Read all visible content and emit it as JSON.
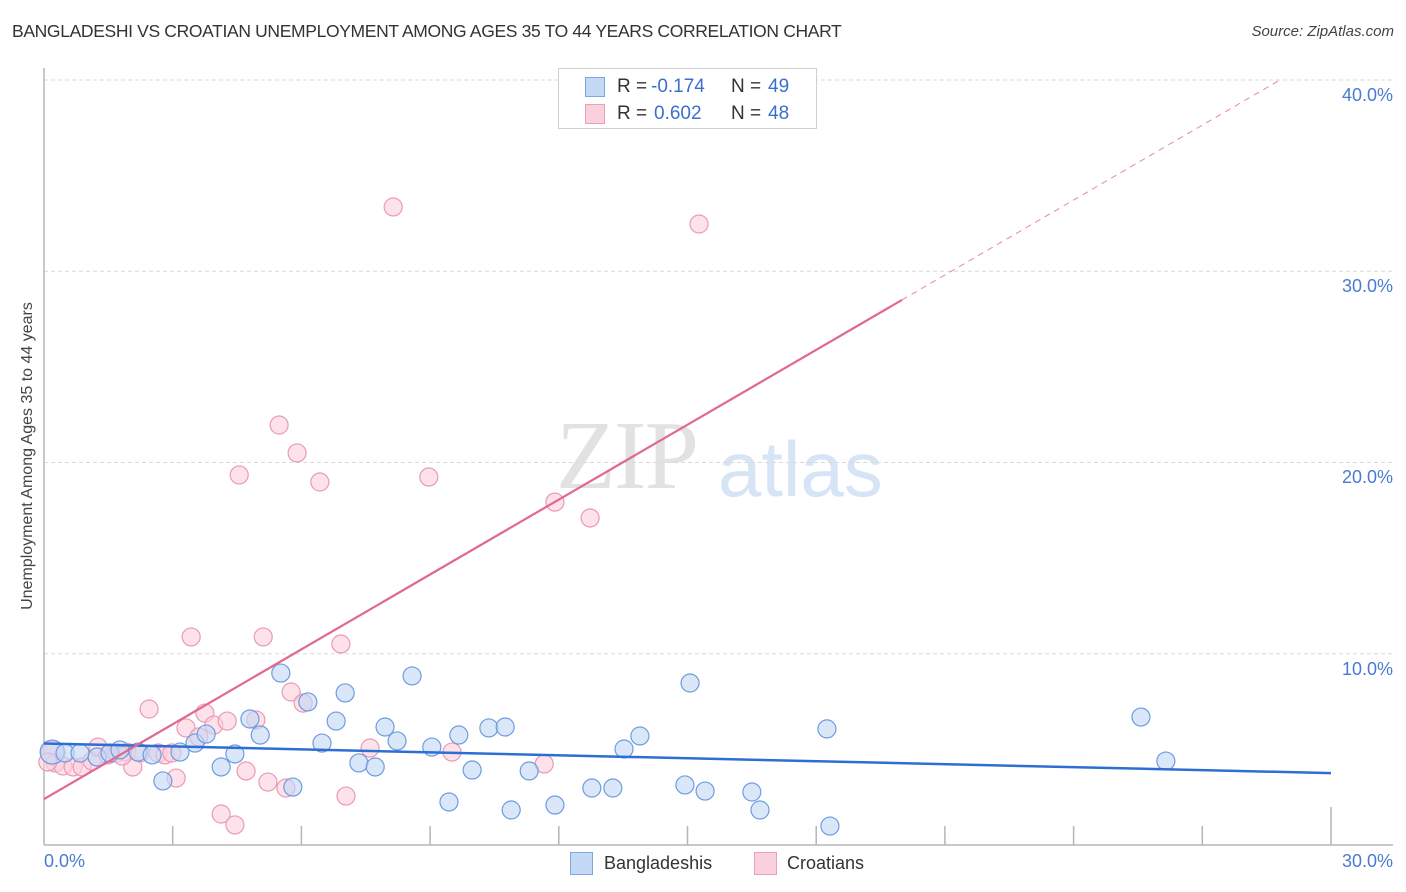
{
  "header": {
    "title": "BANGLADESHI VS CROATIAN UNEMPLOYMENT AMONG AGES 35 TO 44 YEARS CORRELATION CHART",
    "source": "Source: ZipAtlas.com"
  },
  "stats_legend": {
    "rows": [
      {
        "series": "Bangladeshis",
        "r_label": "R =",
        "r_value": "-0.174",
        "n_label": "N =",
        "n_value": "49"
      },
      {
        "series": "Croatians",
        "r_label": "R =",
        "r_value": "0.602",
        "n_label": "N =",
        "n_value": "48"
      }
    ]
  },
  "watermark": {
    "zip": "ZIP",
    "atlas": "atlas"
  },
  "colors": {
    "blue_fill": "#c4d9f5",
    "blue_stroke": "#6f9be0",
    "blue_line": "#2c6fd3",
    "pink_fill": "#fbd0dd",
    "pink_stroke": "#ea9ab5",
    "pink_line": "#e2688f",
    "tick_label": "#4a7bd0"
  },
  "chart_data": {
    "type": "scatter",
    "title": "BANGLADESHI VS CROATIAN UNEMPLOYMENT AMONG AGES 35 TO 44 YEARS CORRELATION CHART",
    "xlabel": "",
    "ylabel": "Unemployment Among Ages 35 to 44 years",
    "xlim": [
      0,
      30
    ],
    "ylim": [
      0,
      40
    ],
    "x_tick_labels": [
      "0.0%",
      "30.0%"
    ],
    "y_ticks": [
      10,
      20,
      30,
      40
    ],
    "y_tick_labels": [
      "10.0%",
      "20.0%",
      "30.0%",
      "40.0%"
    ],
    "grid": "horizontal dashed",
    "legend_position": "bottom-center",
    "legend": [
      "Bangladeshis",
      "Croatians"
    ],
    "series": [
      {
        "name": "Bangladeshis",
        "r": -0.174,
        "n": 49,
        "trend": {
          "x0": 0,
          "y0": 5.31,
          "x1": 30,
          "y1": 3.76
        },
        "points": [
          [
            0.19,
            4.86
          ],
          [
            0.49,
            4.81
          ],
          [
            0.84,
            4.81
          ],
          [
            1.24,
            4.6
          ],
          [
            1.54,
            4.81
          ],
          [
            1.77,
            4.97
          ],
          [
            2.19,
            4.86
          ],
          [
            2.52,
            4.71
          ],
          [
            2.77,
            3.35
          ],
          [
            3.17,
            4.86
          ],
          [
            3.52,
            5.33
          ],
          [
            3.78,
            5.8
          ],
          [
            4.13,
            4.08
          ],
          [
            4.45,
            4.76
          ],
          [
            4.8,
            6.59
          ],
          [
            5.04,
            5.75
          ],
          [
            5.52,
            8.99
          ],
          [
            5.8,
            3.03
          ],
          [
            6.15,
            7.48
          ],
          [
            6.48,
            5.33
          ],
          [
            6.81,
            6.48
          ],
          [
            7.02,
            7.95
          ],
          [
            7.34,
            4.29
          ],
          [
            7.72,
            4.08
          ],
          [
            7.95,
            6.17
          ],
          [
            8.23,
            5.44
          ],
          [
            8.58,
            8.84
          ],
          [
            9.04,
            5.12
          ],
          [
            9.44,
            2.25
          ],
          [
            9.67,
            5.75
          ],
          [
            9.98,
            3.92
          ],
          [
            10.37,
            6.12
          ],
          [
            10.75,
            6.17
          ],
          [
            10.89,
            1.83
          ],
          [
            11.31,
            3.87
          ],
          [
            11.91,
            2.09
          ],
          [
            12.77,
            2.98
          ],
          [
            13.26,
            2.98
          ],
          [
            13.52,
            5.02
          ],
          [
            13.89,
            5.7
          ],
          [
            14.94,
            3.14
          ],
          [
            15.06,
            8.47
          ],
          [
            15.41,
            2.82
          ],
          [
            16.5,
            2.77
          ],
          [
            16.69,
            1.83
          ],
          [
            18.25,
            6.07
          ],
          [
            18.32,
            0.99
          ],
          [
            25.57,
            6.69
          ],
          [
            26.15,
            4.39
          ]
        ]
      },
      {
        "name": "Croatians",
        "r": 0.602,
        "n": 48,
        "trend": {
          "x0": 0,
          "y0": 2.4,
          "x1": 20.0,
          "y1": 28.5,
          "dashed_to_x": 28.77,
          "dashed_to_y": 39.95
        },
        "points": [
          [
            0.21,
            4.81
          ],
          [
            0.26,
            4.29
          ],
          [
            0.44,
            4.13
          ],
          [
            0.68,
            4.08
          ],
          [
            0.89,
            4.08
          ],
          [
            1.12,
            4.39
          ],
          [
            1.26,
            5.12
          ],
          [
            1.49,
            4.71
          ],
          [
            1.7,
            4.81
          ],
          [
            1.93,
            4.86
          ],
          [
            2.07,
            4.08
          ],
          [
            2.24,
            4.81
          ],
          [
            2.45,
            7.11
          ],
          [
            2.66,
            4.81
          ],
          [
            2.82,
            4.71
          ],
          [
            2.98,
            4.81
          ],
          [
            3.08,
            3.5
          ],
          [
            3.31,
            6.12
          ],
          [
            3.43,
            10.88
          ],
          [
            3.61,
            5.65
          ],
          [
            3.75,
            6.9
          ],
          [
            3.96,
            6.27
          ],
          [
            4.13,
            1.62
          ],
          [
            4.27,
            6.48
          ],
          [
            4.45,
            1.05
          ],
          [
            4.55,
            19.35
          ],
          [
            4.71,
            3.87
          ],
          [
            4.94,
            6.54
          ],
          [
            5.11,
            10.88
          ],
          [
            5.22,
            3.29
          ],
          [
            5.48,
            21.96
          ],
          [
            5.64,
            2.98
          ],
          [
            5.76,
            8.0
          ],
          [
            5.9,
            20.5
          ],
          [
            6.04,
            7.42
          ],
          [
            6.43,
            18.98
          ],
          [
            6.92,
            10.51
          ],
          [
            7.04,
            2.56
          ],
          [
            7.6,
            5.07
          ],
          [
            8.14,
            33.36
          ],
          [
            8.97,
            19.24
          ],
          [
            9.51,
            4.86
          ],
          [
            11.66,
            4.24
          ],
          [
            11.91,
            17.93
          ],
          [
            12.73,
            17.1
          ],
          [
            15.27,
            32.47
          ],
          [
            0.09,
            4.34
          ],
          [
            1.82,
            4.65
          ]
        ]
      }
    ]
  }
}
